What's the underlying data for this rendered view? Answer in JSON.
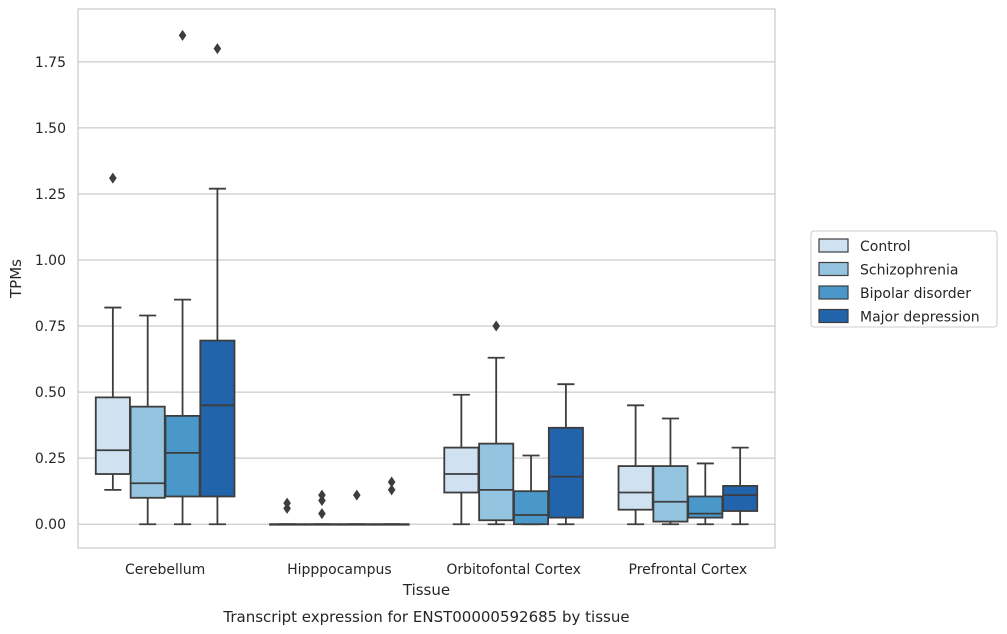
{
  "chart_data": {
    "type": "boxplot",
    "caption": "Transcript expression for ENST00000592685 by tissue",
    "xlabel": "Tissue",
    "ylabel": "TPMs",
    "ylim": [
      -0.09,
      1.95
    ],
    "yticks": [
      0.0,
      0.25,
      0.5,
      0.75,
      1.0,
      1.25,
      1.5,
      1.75
    ],
    "ytick_labels": [
      "0.00",
      "0.25",
      "0.50",
      "0.75",
      "1.00",
      "1.25",
      "1.50",
      "1.75"
    ],
    "grid": "horizontal",
    "legend_position": "right",
    "categories": [
      "Cerebellum",
      "Hipppocampus",
      "Orbitofontal Cortex",
      "Prefrontal Cortex"
    ],
    "series": [
      {
        "name": "Control",
        "color": "#d0e1f2",
        "boxes": [
          {
            "whislo": 0.13,
            "q1": 0.19,
            "med": 0.28,
            "q3": 0.48,
            "whishi": 0.82,
            "fliers": [
              1.31
            ]
          },
          {
            "whislo": 0.0,
            "q1": 0.0,
            "med": 0.0,
            "q3": 0.0,
            "whishi": 0.0,
            "fliers": [
              0.06,
              0.08
            ]
          },
          {
            "whislo": 0.0,
            "q1": 0.12,
            "med": 0.19,
            "q3": 0.29,
            "whishi": 0.49,
            "fliers": []
          },
          {
            "whislo": 0.0,
            "q1": 0.055,
            "med": 0.12,
            "q3": 0.22,
            "whishi": 0.45,
            "fliers": []
          }
        ]
      },
      {
        "name": "Schizophrenia",
        "color": "#94c4df",
        "boxes": [
          {
            "whislo": 0.0,
            "q1": 0.1,
            "med": 0.155,
            "q3": 0.445,
            "whishi": 0.79,
            "fliers": []
          },
          {
            "whislo": 0.0,
            "q1": 0.0,
            "med": 0.0,
            "q3": 0.0,
            "whishi": 0.0,
            "fliers": [
              0.04,
              0.09,
              0.11
            ]
          },
          {
            "whislo": 0.0,
            "q1": 0.015,
            "med": 0.13,
            "q3": 0.305,
            "whishi": 0.63,
            "fliers": [
              0.75
            ]
          },
          {
            "whislo": 0.0,
            "q1": 0.01,
            "med": 0.085,
            "q3": 0.22,
            "whishi": 0.4,
            "fliers": []
          }
        ]
      },
      {
        "name": "Bipolar disorder",
        "color": "#4a98c9",
        "boxes": [
          {
            "whislo": 0.0,
            "q1": 0.105,
            "med": 0.27,
            "q3": 0.41,
            "whishi": 0.85,
            "fliers": [
              1.85
            ]
          },
          {
            "whislo": 0.0,
            "q1": 0.0,
            "med": 0.0,
            "q3": 0.0,
            "whishi": 0.0,
            "fliers": [
              0.11
            ]
          },
          {
            "whislo": 0.0,
            "q1": 0.0,
            "med": 0.035,
            "q3": 0.125,
            "whishi": 0.26,
            "fliers": []
          },
          {
            "whislo": 0.0,
            "q1": 0.025,
            "med": 0.04,
            "q3": 0.105,
            "whishi": 0.23,
            "fliers": []
          }
        ]
      },
      {
        "name": "Major depression",
        "color": "#2164ab",
        "boxes": [
          {
            "whislo": 0.0,
            "q1": 0.105,
            "med": 0.45,
            "q3": 0.695,
            "whishi": 1.27,
            "fliers": [
              1.8
            ]
          },
          {
            "whislo": 0.0,
            "q1": 0.0,
            "med": 0.0,
            "q3": 0.0,
            "whishi": 0.0,
            "fliers": [
              0.13,
              0.16
            ]
          },
          {
            "whislo": 0.0,
            "q1": 0.025,
            "med": 0.18,
            "q3": 0.365,
            "whishi": 0.53,
            "fliers": []
          },
          {
            "whislo": 0.0,
            "q1": 0.05,
            "med": 0.11,
            "q3": 0.145,
            "whishi": 0.29,
            "fliers": []
          }
        ]
      }
    ]
  }
}
